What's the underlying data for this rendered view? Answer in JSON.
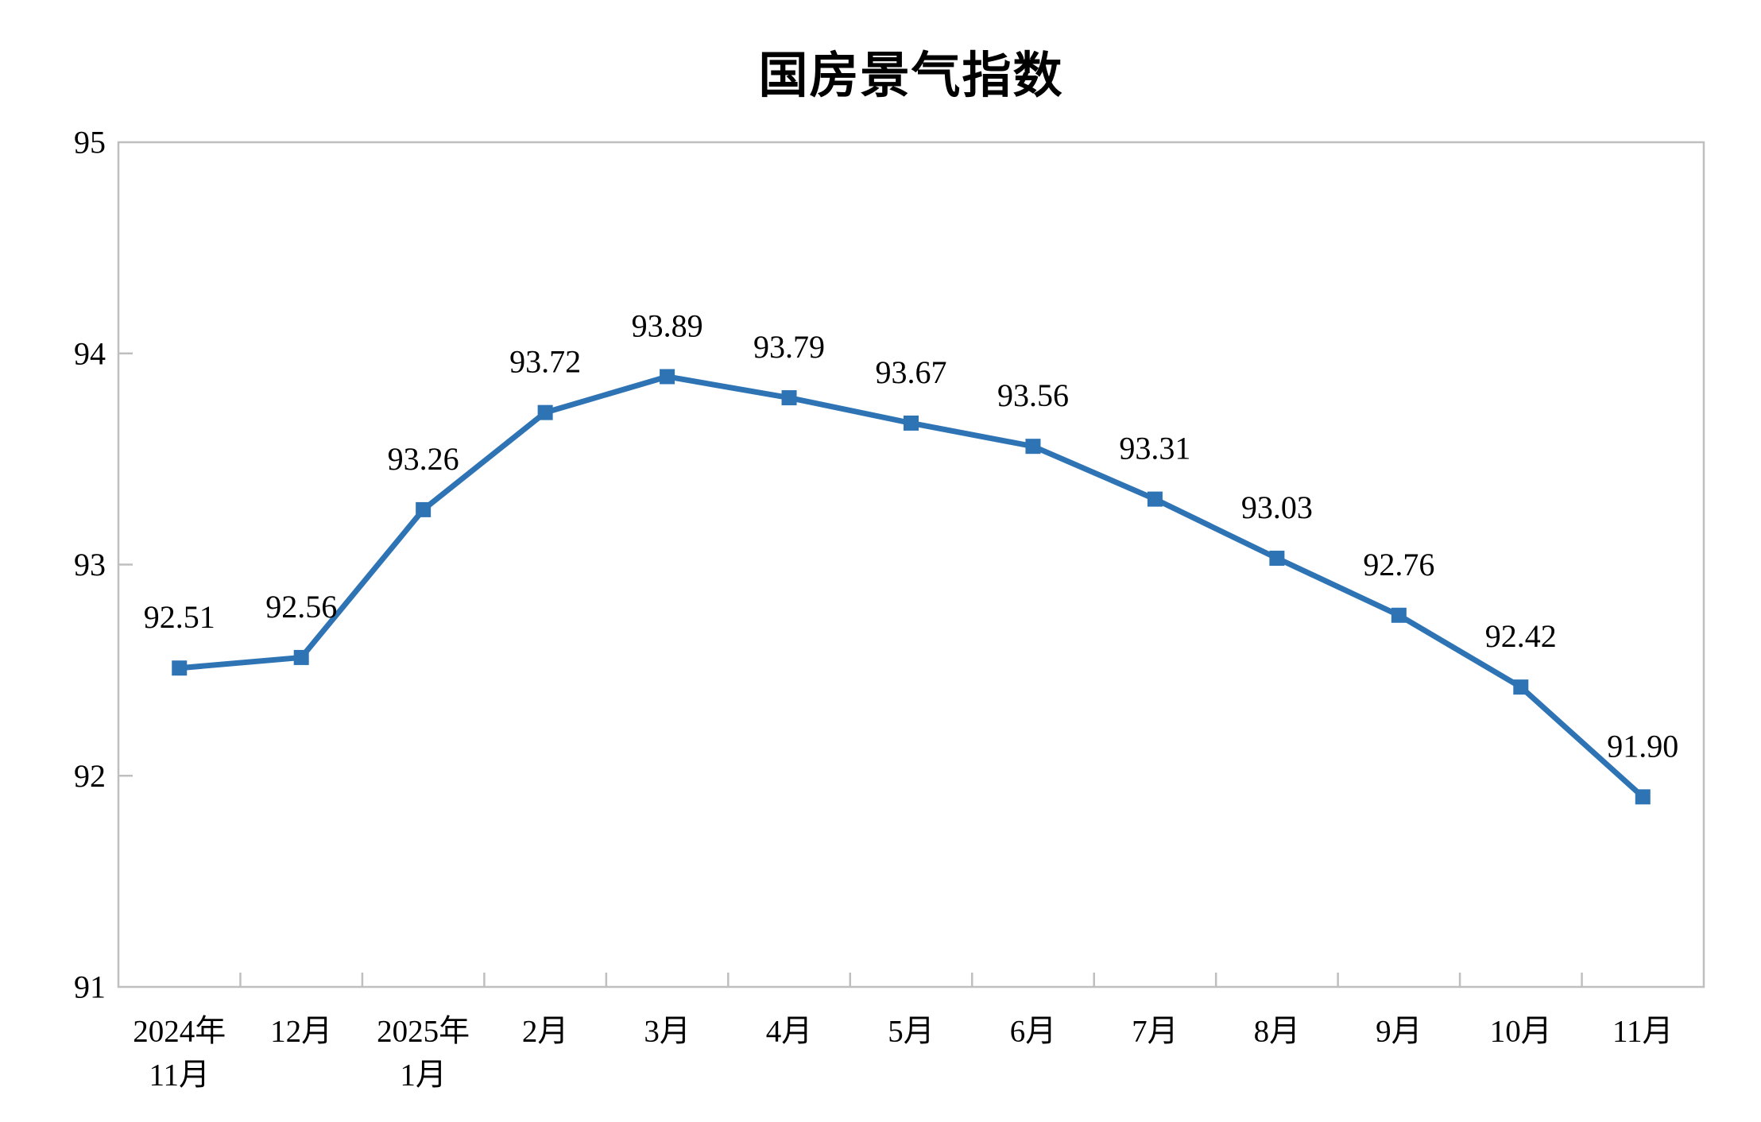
{
  "chart_data": {
    "type": "line",
    "title": "国房景气指数",
    "series_name": "国房景气指数",
    "categories": [
      [
        "2024年",
        "11月"
      ],
      [
        "12月"
      ],
      [
        "2025年",
        "1月"
      ],
      [
        "2月"
      ],
      [
        "3月"
      ],
      [
        "4月"
      ],
      [
        "5月"
      ],
      [
        "6月"
      ],
      [
        "7月"
      ],
      [
        "8月"
      ],
      [
        "9月"
      ],
      [
        "10月"
      ],
      [
        "11月"
      ]
    ],
    "values": [
      92.51,
      92.56,
      93.26,
      93.72,
      93.89,
      93.79,
      93.67,
      93.56,
      93.31,
      93.03,
      92.76,
      92.42,
      91.9
    ],
    "data_labels": [
      "92.51",
      "92.56",
      "93.26",
      "93.72",
      "93.89",
      "93.79",
      "93.67",
      "93.56",
      "93.31",
      "93.03",
      "92.76",
      "92.42",
      "91.90"
    ],
    "ylim": [
      91,
      95
    ],
    "y_ticks": [
      91,
      92,
      93,
      94,
      95
    ],
    "xlabel": "",
    "ylabel": "",
    "grid": false,
    "legend": "none",
    "marker": "square",
    "colors": {
      "line": "#2E74B5",
      "marker": "#2E74B5",
      "axis": "#BFBFBF",
      "text": "#000000"
    }
  }
}
